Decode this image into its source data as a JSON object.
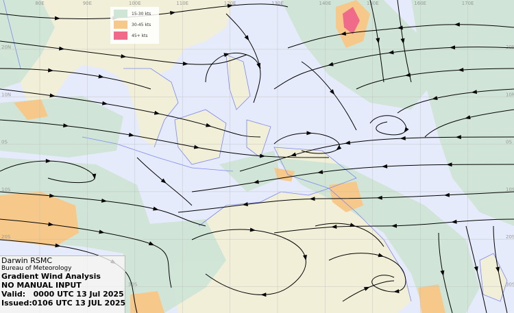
{
  "colors": {
    "ocean": "#e6ebfb",
    "land": "#f1efd8",
    "coastline": "#7b86f0",
    "wind_15_30": "#cfe5d6",
    "wind_30_45": "#f6c98b",
    "wind_45_plus": "#f06a8a",
    "streamline": "#000000"
  },
  "legend": {
    "items": [
      {
        "label": "15-30 kts",
        "color": "#cfe5d6"
      },
      {
        "label": "30-45 kts",
        "color": "#f6c98b"
      },
      {
        "label": "45+ kts",
        "color": "#f06a8a"
      }
    ]
  },
  "grid": {
    "longitudes": [
      "80E",
      "90E",
      "100E",
      "110E",
      "120E",
      "130E",
      "140E",
      "150E",
      "160E",
      "170E"
    ],
    "latitudes": [
      "20N",
      "10N",
      "0S",
      "10S",
      "20S",
      "30S"
    ]
  },
  "info": {
    "org": "Darwin RSMC",
    "agency": "Bureau of Meteorology",
    "product": "Gradient Wind Analysis",
    "note": "NO MANUAL INPUT",
    "valid": "Valid:   0000 UTC 13 Jul 2025",
    "issued": "Issued:0106 UTC 13 JUL 2025"
  }
}
